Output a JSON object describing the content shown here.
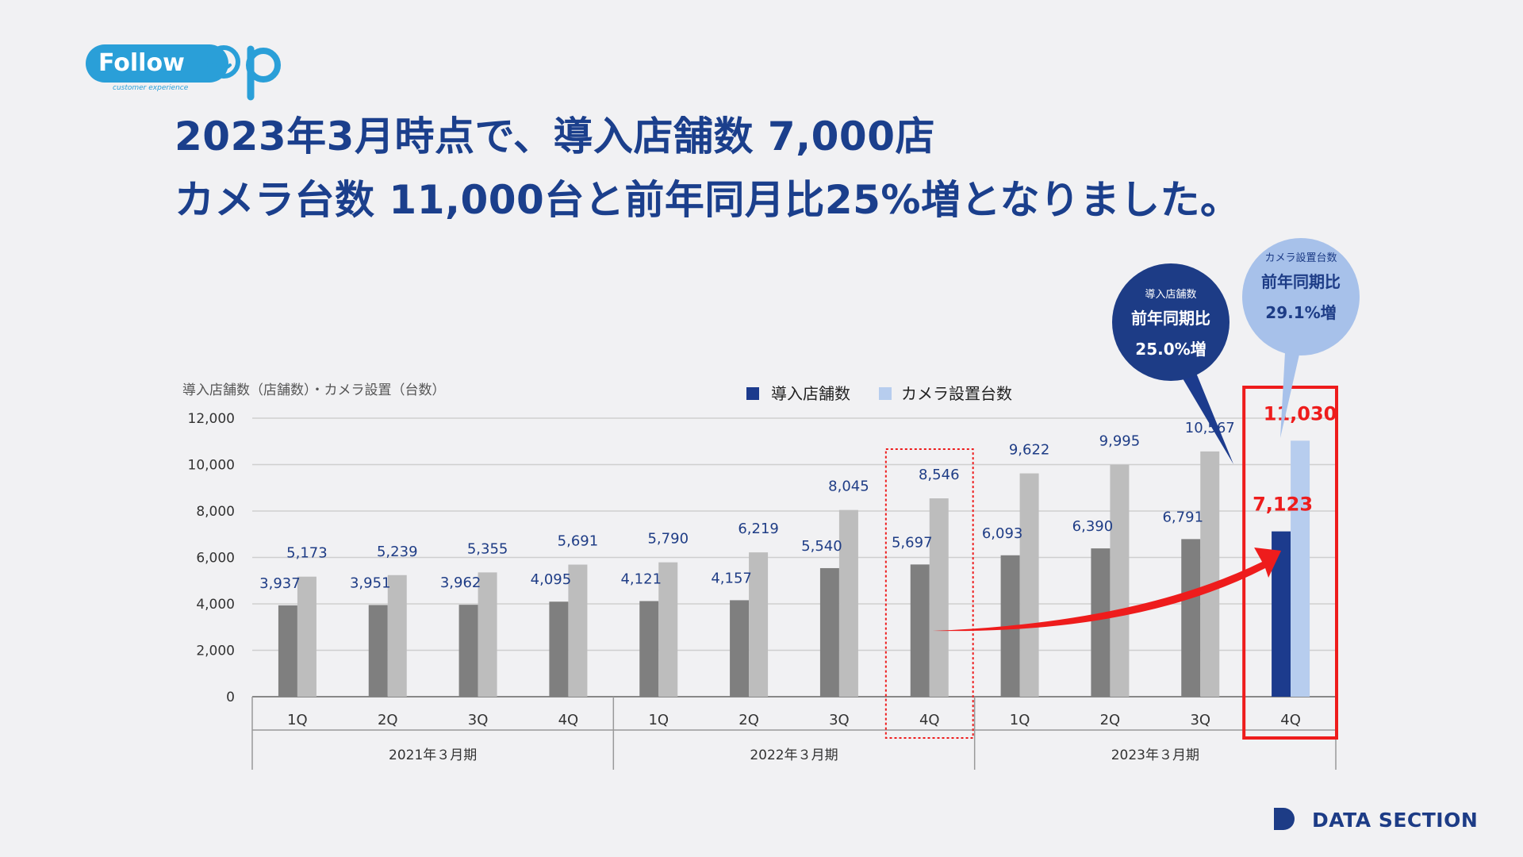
{
  "logo": {
    "text": "Follow",
    "tagline": "customer experience"
  },
  "headline": {
    "line1": "2023年3月時点で、導入店舗数 7,000店",
    "line2": "カメラ台数 11,000台と前年同月比25%増となりました。"
  },
  "bubbles": {
    "stores": {
      "label": "導入店舗数",
      "line1": "前年同期比",
      "line2": "25.0%増"
    },
    "cameras": {
      "label": "カメラ設置台数",
      "line1": "前年同期比",
      "line2": "29.1%増"
    }
  },
  "footer": {
    "brand": "DATA SECTION"
  },
  "colors": {
    "store_bar": "#7f7f7f",
    "camera_bar": "#bdbdbd",
    "store_highlight": "#1c3b8d",
    "camera_highlight": "#b7cdee",
    "accent_red": "#ee1c1c",
    "text_blue": "#1f3d86"
  },
  "chart_data": {
    "type": "bar",
    "ylabel": "導入店舗数（店舗数）・カメラ設置（台数）",
    "ylim": [
      0,
      12000
    ],
    "yticks": [
      "0",
      "2,000",
      "4,000",
      "6,000",
      "8,000",
      "10,000",
      "12,000"
    ],
    "grid": true,
    "legend_position": "top",
    "categories": [
      "1Q",
      "2Q",
      "3Q",
      "4Q",
      "1Q",
      "2Q",
      "3Q",
      "4Q",
      "1Q",
      "2Q",
      "3Q",
      "4Q"
    ],
    "groups": [
      {
        "label": "2021年３月期",
        "count": 4
      },
      {
        "label": "2022年３月期",
        "count": 4
      },
      {
        "label": "2023年３月期",
        "count": 4
      }
    ],
    "series": [
      {
        "name": "導入店舗数",
        "values": [
          3937,
          3951,
          3962,
          4095,
          4121,
          4157,
          5540,
          5697,
          6093,
          6390,
          6791,
          7123
        ]
      },
      {
        "name": "カメラ設置台数",
        "values": [
          5173,
          5239,
          5355,
          5691,
          5790,
          6219,
          8045,
          8546,
          9622,
          9995,
          10567,
          11030
        ]
      }
    ],
    "highlight_index": 11,
    "compare_index": 7
  }
}
